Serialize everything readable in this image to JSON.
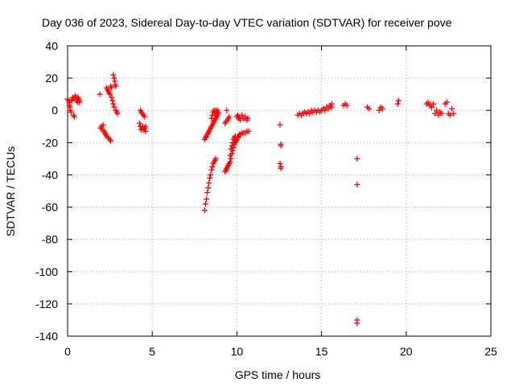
{
  "chart_data": {
    "type": "scatter",
    "title": "Day 036 of 2023, Sidereal Day-to-day VTEC variation (SDTVAR) for receiver pove",
    "xlabel": "GPS time / hours",
    "ylabel": "SDTVAR / TECUs",
    "xlim": [
      0,
      25
    ],
    "ylim": [
      -140,
      40
    ],
    "xticks": [
      0,
      5,
      10,
      15,
      20,
      25
    ],
    "yticks": [
      -140,
      -120,
      -100,
      -80,
      -60,
      -40,
      -20,
      0,
      20,
      40
    ],
    "grid": true,
    "marker": "+",
    "marker_color": "#ff0000",
    "series": [
      {
        "name": "SDTVAR",
        "points": [
          [
            0.0,
            7
          ],
          [
            0.05,
            6
          ],
          [
            0.1,
            5
          ],
          [
            0.1,
            3
          ],
          [
            0.15,
            2
          ],
          [
            0.15,
            0
          ],
          [
            0.2,
            -1
          ],
          [
            0.25,
            6
          ],
          [
            0.3,
            8
          ],
          [
            0.35,
            7
          ],
          [
            0.35,
            -3
          ],
          [
            0.4,
            -4
          ],
          [
            0.45,
            9
          ],
          [
            0.5,
            8
          ],
          [
            0.5,
            7
          ],
          [
            0.55,
            6
          ],
          [
            0.6,
            5
          ],
          [
            0.6,
            8
          ],
          [
            0.65,
            7
          ],
          [
            0.7,
            6
          ],
          [
            0.7,
            5
          ],
          [
            1.9,
            10
          ],
          [
            1.95,
            -11
          ],
          [
            2.0,
            -10
          ],
          [
            2.05,
            -12
          ],
          [
            2.1,
            -9
          ],
          [
            2.15,
            -13
          ],
          [
            2.2,
            -14
          ],
          [
            2.25,
            -15
          ],
          [
            2.3,
            14
          ],
          [
            2.3,
            -16
          ],
          [
            2.35,
            13
          ],
          [
            2.4,
            12
          ],
          [
            2.4,
            -17
          ],
          [
            2.45,
            11
          ],
          [
            2.5,
            -18
          ],
          [
            2.5,
            10
          ],
          [
            2.55,
            15
          ],
          [
            2.55,
            -19
          ],
          [
            2.6,
            14
          ],
          [
            2.6,
            8
          ],
          [
            2.65,
            6
          ],
          [
            2.7,
            22
          ],
          [
            2.7,
            4
          ],
          [
            2.75,
            20
          ],
          [
            2.75,
            2
          ],
          [
            2.8,
            18
          ],
          [
            2.8,
            16
          ],
          [
            2.85,
            0
          ],
          [
            2.85,
            15
          ],
          [
            2.9,
            -1
          ],
          [
            2.95,
            -2
          ],
          [
            4.25,
            -8
          ],
          [
            4.3,
            -10
          ],
          [
            4.3,
            0
          ],
          [
            4.35,
            -12
          ],
          [
            4.35,
            -1
          ],
          [
            4.4,
            -11
          ],
          [
            4.4,
            -2
          ],
          [
            4.45,
            -10
          ],
          [
            4.5,
            -3
          ],
          [
            4.5,
            -12
          ],
          [
            4.55,
            -11
          ],
          [
            4.55,
            -4
          ],
          [
            4.6,
            -13
          ],
          [
            4.6,
            -10
          ],
          [
            8.1,
            -62
          ],
          [
            8.1,
            -18
          ],
          [
            8.15,
            -58
          ],
          [
            8.15,
            -17
          ],
          [
            8.2,
            -55
          ],
          [
            8.2,
            -16
          ],
          [
            8.25,
            -51
          ],
          [
            8.25,
            -15
          ],
          [
            8.3,
            -48
          ],
          [
            8.3,
            -14
          ],
          [
            8.35,
            -45
          ],
          [
            8.35,
            -13
          ],
          [
            8.4,
            -42
          ],
          [
            8.4,
            -12
          ],
          [
            8.45,
            -40
          ],
          [
            8.45,
            -11
          ],
          [
            8.5,
            -37
          ],
          [
            8.5,
            -10
          ],
          [
            8.5,
            -5
          ],
          [
            8.55,
            -35
          ],
          [
            8.55,
            -9
          ],
          [
            8.55,
            -3
          ],
          [
            8.6,
            -33
          ],
          [
            8.6,
            -8
          ],
          [
            8.6,
            -1
          ],
          [
            8.65,
            -32
          ],
          [
            8.65,
            -7
          ],
          [
            8.65,
            0
          ],
          [
            8.7,
            -31
          ],
          [
            8.7,
            -6
          ],
          [
            8.7,
            -2
          ],
          [
            8.75,
            -30
          ],
          [
            8.75,
            -5
          ],
          [
            8.75,
            0
          ],
          [
            8.8,
            -4
          ],
          [
            8.8,
            -1
          ],
          [
            8.85,
            -3
          ],
          [
            8.85,
            0
          ],
          [
            8.9,
            -2
          ],
          [
            8.9,
            -1
          ],
          [
            9.3,
            -38
          ],
          [
            9.3,
            -8
          ],
          [
            9.35,
            -37
          ],
          [
            9.35,
            -7
          ],
          [
            9.4,
            -36
          ],
          [
            9.4,
            0
          ],
          [
            9.45,
            -35
          ],
          [
            9.45,
            -6
          ],
          [
            9.5,
            -34
          ],
          [
            9.5,
            -5
          ],
          [
            9.55,
            -33
          ],
          [
            9.55,
            -4
          ],
          [
            9.6,
            -32
          ],
          [
            9.6,
            -28
          ],
          [
            9.65,
            -30
          ],
          [
            9.65,
            -24
          ],
          [
            9.7,
            -27
          ],
          [
            9.7,
            -22
          ],
          [
            9.75,
            -25
          ],
          [
            9.75,
            -20
          ],
          [
            9.8,
            -23
          ],
          [
            9.8,
            -18
          ],
          [
            9.85,
            -21
          ],
          [
            9.85,
            -17
          ],
          [
            9.9,
            -20
          ],
          [
            9.9,
            -16
          ],
          [
            9.95,
            -19
          ],
          [
            10.0,
            -18
          ],
          [
            10.05,
            -17
          ],
          [
            10.1,
            -16
          ],
          [
            10.15,
            -15
          ],
          [
            10.2,
            -15
          ],
          [
            10.3,
            -14
          ],
          [
            10.4,
            -14
          ],
          [
            10.5,
            -14
          ],
          [
            10.6,
            -13
          ],
          [
            10.7,
            -13
          ],
          [
            10.0,
            -4
          ],
          [
            10.05,
            -3
          ],
          [
            10.1,
            -5
          ],
          [
            10.15,
            -4
          ],
          [
            10.2,
            -6
          ],
          [
            10.3,
            -3
          ],
          [
            10.4,
            -5
          ],
          [
            10.5,
            -4
          ],
          [
            10.6,
            -6
          ],
          [
            10.65,
            -5
          ],
          [
            12.55,
            -9
          ],
          [
            12.6,
            -21
          ],
          [
            12.6,
            -22
          ],
          [
            12.55,
            -33
          ],
          [
            12.6,
            -35
          ],
          [
            12.6,
            -36
          ],
          [
            13.6,
            -3
          ],
          [
            13.7,
            -2
          ],
          [
            13.8,
            -3
          ],
          [
            13.9,
            -2
          ],
          [
            14.0,
            -1
          ],
          [
            14.1,
            -2
          ],
          [
            14.2,
            -1
          ],
          [
            14.3,
            -2
          ],
          [
            14.4,
            0
          ],
          [
            14.5,
            -1
          ],
          [
            14.6,
            0
          ],
          [
            14.7,
            -1
          ],
          [
            14.8,
            0
          ],
          [
            14.9,
            -1
          ],
          [
            15.0,
            0
          ],
          [
            15.1,
            1
          ],
          [
            15.2,
            0
          ],
          [
            15.3,
            2
          ],
          [
            15.4,
            1
          ],
          [
            15.5,
            3
          ],
          [
            15.6,
            2
          ],
          [
            15.6,
            4
          ],
          [
            16.3,
            3
          ],
          [
            16.4,
            4
          ],
          [
            16.5,
            3
          ],
          [
            17.1,
            -30
          ],
          [
            17.1,
            -46
          ],
          [
            17.1,
            -130
          ],
          [
            17.1,
            -132
          ],
          [
            17.7,
            2
          ],
          [
            17.8,
            1
          ],
          [
            18.4,
            0
          ],
          [
            18.5,
            2
          ],
          [
            18.6,
            1
          ],
          [
            19.5,
            4
          ],
          [
            19.55,
            6
          ],
          [
            21.2,
            4
          ],
          [
            21.3,
            5
          ],
          [
            21.4,
            3
          ],
          [
            21.5,
            2
          ],
          [
            21.6,
            4
          ],
          [
            21.7,
            -2
          ],
          [
            21.8,
            0
          ],
          [
            21.9,
            -3
          ],
          [
            22.0,
            -1
          ],
          [
            22.1,
            -2
          ],
          [
            22.3,
            4
          ],
          [
            22.4,
            5
          ],
          [
            22.5,
            -2
          ],
          [
            22.6,
            -3
          ],
          [
            22.7,
            1
          ],
          [
            22.8,
            -2
          ]
        ]
      }
    ]
  }
}
